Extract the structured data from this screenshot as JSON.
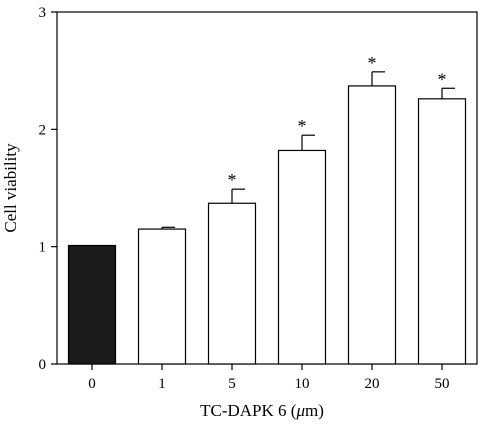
{
  "chart_data": {
    "type": "bar",
    "title": "",
    "xlabel": "TC-DAPK 6 (μm)",
    "ylabel": "Cell viability",
    "ylim": [
      0,
      3
    ],
    "yticks": [
      "0",
      "1",
      "2",
      "3"
    ],
    "categories": [
      "0",
      "1",
      "5",
      "10",
      "20",
      "50"
    ],
    "values": [
      1.01,
      1.15,
      1.37,
      1.82,
      2.37,
      2.26
    ],
    "errors": [
      0.0,
      0.015,
      0.12,
      0.13,
      0.12,
      0.09
    ],
    "significance": [
      "",
      "",
      "*",
      "*",
      "*",
      "*"
    ],
    "bar_fills": [
      "#1a1a1a",
      "#ffffff",
      "#ffffff",
      "#ffffff",
      "#ffffff",
      "#ffffff"
    ],
    "grid": false,
    "legend": "none"
  }
}
